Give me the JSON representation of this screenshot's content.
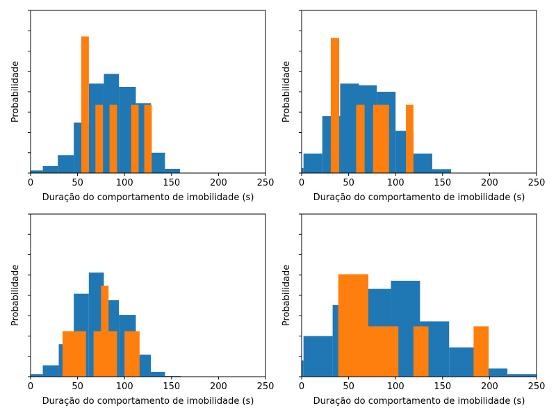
{
  "figure": {
    "background": "#ffffff",
    "series_colors": [
      "#1f77b4",
      "#ff7f0e"
    ]
  },
  "chart_data": [
    {
      "type": "bar",
      "subtype": "histogram-overlay",
      "xlabel": "Duração do comportamento de imobilidade (s)",
      "ylabel": "Probabilidade",
      "xlim": [
        0,
        250
      ],
      "ylim": [
        0,
        1
      ],
      "xticks": [
        0,
        50,
        100,
        150,
        200,
        250
      ],
      "y_ticklabels_shown": false,
      "y_minor_ticks": 8,
      "series": [
        {
          "color": "#1f77b4",
          "bins": [
            [
              0,
              13,
              0.016
            ],
            [
              13,
              29,
              0.043
            ],
            [
              29,
              46,
              0.11
            ],
            [
              46,
              62,
              0.31
            ],
            [
              62,
              78,
              0.55
            ],
            [
              78,
              94,
              0.61
            ],
            [
              94,
              112,
              0.53
            ],
            [
              112,
              128,
              0.43
            ],
            [
              128,
              143,
              0.125
            ],
            [
              143,
              159,
              0.026
            ]
          ]
        },
        {
          "color": "#ff7f0e",
          "bins": [
            [
              54,
              62,
              0.84
            ],
            [
              69,
              77,
              0.42
            ],
            [
              84,
              92,
              0.42
            ],
            [
              107,
              115,
              0.42
            ],
            [
              121,
              129,
              0.42
            ]
          ]
        }
      ]
    },
    {
      "type": "bar",
      "subtype": "histogram-overlay",
      "xlabel": "Duração do comportamento de imobilidade (s)",
      "ylabel": "Probabilidade",
      "xlim": [
        0,
        250
      ],
      "ylim": [
        0,
        1
      ],
      "xticks": [
        0,
        50,
        100,
        150,
        200,
        250
      ],
      "y_ticklabels_shown": false,
      "y_minor_ticks": 8,
      "series": [
        {
          "color": "#1f77b4",
          "bins": [
            [
              0,
              2,
              0.03
            ],
            [
              2,
              22,
              0.12
            ],
            [
              22,
              41,
              0.35
            ],
            [
              41,
              61,
              0.55
            ],
            [
              61,
              80,
              0.54
            ],
            [
              80,
              100,
              0.5
            ],
            [
              100,
              119,
              0.26
            ],
            [
              119,
              139,
              0.12
            ],
            [
              139,
              159,
              0.024
            ]
          ]
        },
        {
          "color": "#ff7f0e",
          "bins": [
            [
              31,
              40,
              0.83
            ],
            [
              58,
              67,
              0.42
            ],
            [
              76,
              93,
              0.42
            ],
            [
              111,
              119,
              0.42
            ]
          ]
        }
      ]
    },
    {
      "type": "bar",
      "subtype": "histogram-overlay",
      "xlabel": "Duração do comportamento de imobilidade (s)",
      "ylabel": "Probabilidade",
      "xlim": [
        0,
        250
      ],
      "ylim": [
        0,
        1
      ],
      "xticks": [
        0,
        50,
        100,
        150,
        200,
        250
      ],
      "y_ticklabels_shown": false,
      "y_minor_ticks": 8,
      "series": [
        {
          "color": "#1f77b4",
          "bins": [
            [
              0,
              13,
              0.016
            ],
            [
              13,
              30,
              0.07
            ],
            [
              30,
              46,
              0.2
            ],
            [
              46,
              62,
              0.51
            ],
            [
              62,
              78,
              0.64
            ],
            [
              78,
              94,
              0.47
            ],
            [
              94,
              112,
              0.38
            ],
            [
              112,
              128,
              0.135
            ],
            [
              128,
              143,
              0.03
            ],
            [
              143,
              160,
              0.004
            ]
          ]
        },
        {
          "color": "#ff7f0e",
          "bins": [
            [
              34,
              59,
              0.28
            ],
            [
              67,
              92,
              0.28
            ],
            [
              75,
              83,
              0.56
            ],
            [
              100,
              116,
              0.28
            ]
          ]
        }
      ]
    },
    {
      "type": "bar",
      "subtype": "histogram-overlay",
      "xlabel": "Duração do comportamento de imobilidade (s)",
      "ylabel": "Probabilidade",
      "xlim": [
        0,
        250
      ],
      "ylim": [
        0,
        1
      ],
      "xticks": [
        0,
        50,
        100,
        150,
        200,
        250
      ],
      "y_ticklabels_shown": false,
      "y_minor_ticks": 8,
      "series": [
        {
          "color": "#1f77b4",
          "bins": [
            [
              0,
              2,
              0.1
            ],
            [
              2,
              33,
              0.25
            ],
            [
              33,
              64,
              0.44
            ],
            [
              64,
              95,
              0.54
            ],
            [
              95,
              126,
              0.59
            ],
            [
              126,
              157,
              0.34
            ],
            [
              157,
              188,
              0.18
            ],
            [
              188,
              219,
              0.05
            ],
            [
              219,
              250,
              0.016
            ]
          ]
        },
        {
          "color": "#ff7f0e",
          "bins": [
            [
              39,
              71,
              0.63
            ],
            [
              71,
              103,
              0.31
            ],
            [
              119,
              135,
              0.31
            ],
            [
              183,
              199,
              0.31
            ]
          ]
        }
      ]
    }
  ]
}
